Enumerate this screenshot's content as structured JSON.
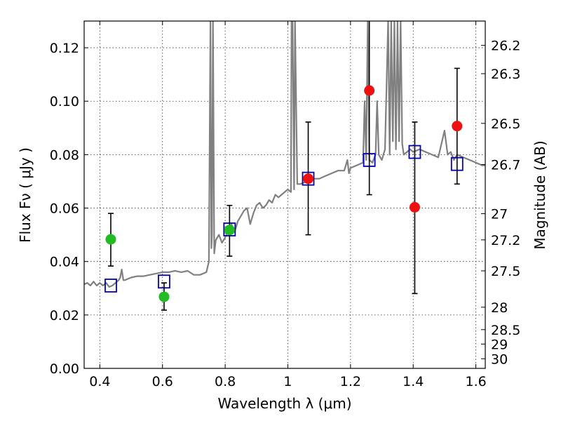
{
  "chart_data": {
    "type": "scatter",
    "xlabel": "Wavelength  λ (μm)",
    "ylabel": "Flux  Fν  ( μJy )",
    "ylabel_right": "Magnitude (AB)",
    "xlim": [
      0.35,
      1.63
    ],
    "ylim": [
      0.0,
      0.13
    ],
    "grid": true,
    "x_ticks": [
      0.4,
      0.6,
      0.8,
      1.0,
      1.2,
      1.4,
      1.6
    ],
    "x_tick_labels": [
      "0.4",
      "0.6",
      "0.8",
      "1",
      "1.2",
      "1.4",
      "1.6"
    ],
    "y_ticks": [
      0.0,
      0.02,
      0.04,
      0.06,
      0.08,
      0.1,
      0.12
    ],
    "y_tick_labels": [
      "0.00",
      "0.02",
      "0.04",
      "0.06",
      "0.08",
      "0.10",
      "0.12"
    ],
    "right_ticks": [
      {
        "label": "26.2",
        "flux": 0.1209
      },
      {
        "label": "26.3",
        "flux": 0.1103
      },
      {
        "label": "26.5",
        "flux": 0.0917
      },
      {
        "label": "26.7",
        "flux": 0.0763
      },
      {
        "label": "27",
        "flux": 0.0579
      },
      {
        "label": "27.2",
        "flux": 0.0481
      },
      {
        "label": "27.5",
        "flux": 0.0365
      },
      {
        "label": "28",
        "flux": 0.0229
      },
      {
        "label": "28.5",
        "flux": 0.0145
      },
      {
        "label": "29",
        "flux": 0.0091
      },
      {
        "label": "30",
        "flux": 0.0036
      }
    ],
    "series": [
      {
        "kind": "spectrum",
        "color": "#808080",
        "x": [
          0.35,
          0.36,
          0.37,
          0.38,
          0.39,
          0.4,
          0.41,
          0.42,
          0.43,
          0.44,
          0.45,
          0.46,
          0.465,
          0.47,
          0.475,
          0.48,
          0.5,
          0.52,
          0.54,
          0.56,
          0.58,
          0.6,
          0.62,
          0.64,
          0.66,
          0.68,
          0.7,
          0.72,
          0.74,
          0.748,
          0.753,
          0.756,
          0.758,
          0.761,
          0.765,
          0.77,
          0.78,
          0.79,
          0.8,
          0.81,
          0.82,
          0.83,
          0.84,
          0.85,
          0.86,
          0.87,
          0.88,
          0.89,
          0.9,
          0.91,
          0.92,
          0.93,
          0.94,
          0.95,
          0.96,
          0.97,
          0.98,
          0.99,
          1.0,
          1.01,
          1.012,
          1.015,
          1.02,
          1.023,
          1.03,
          1.04,
          1.06,
          1.08,
          1.1,
          1.12,
          1.14,
          1.16,
          1.18,
          1.19,
          1.195,
          1.2,
          1.22,
          1.24,
          1.245,
          1.25,
          1.255,
          1.26,
          1.27,
          1.28,
          1.285,
          1.29,
          1.3,
          1.31,
          1.32,
          1.325,
          1.33,
          1.335,
          1.34,
          1.345,
          1.35,
          1.355,
          1.36,
          1.365,
          1.37,
          1.38,
          1.39,
          1.4,
          1.42,
          1.44,
          1.46,
          1.48,
          1.5,
          1.51,
          1.52,
          1.53,
          1.54,
          1.56,
          1.58,
          1.6,
          1.62,
          1.63
        ],
        "y": [
          0.0315,
          0.032,
          0.031,
          0.0325,
          0.031,
          0.032,
          0.031,
          0.032,
          0.0305,
          0.031,
          0.032,
          0.033,
          0.034,
          0.037,
          0.033,
          0.033,
          0.034,
          0.0345,
          0.0345,
          0.035,
          0.0355,
          0.036,
          0.036,
          0.0365,
          0.036,
          0.0365,
          0.035,
          0.035,
          0.036,
          0.04,
          0.13,
          0.045,
          0.05,
          0.13,
          0.043,
          0.048,
          0.05,
          0.047,
          0.049,
          0.052,
          0.054,
          0.051,
          0.055,
          0.057,
          0.059,
          0.06,
          0.054,
          0.058,
          0.061,
          0.062,
          0.06,
          0.061,
          0.063,
          0.062,
          0.065,
          0.064,
          0.065,
          0.066,
          0.067,
          0.066,
          0.13,
          0.13,
          0.067,
          0.13,
          0.069,
          0.069,
          0.07,
          0.071,
          0.071,
          0.072,
          0.073,
          0.074,
          0.074,
          0.078,
          0.073,
          0.075,
          0.076,
          0.077,
          0.1,
          0.078,
          0.13,
          0.078,
          0.077,
          0.08,
          0.1,
          0.08,
          0.078,
          0.082,
          0.13,
          0.08,
          0.13,
          0.085,
          0.13,
          0.082,
          0.13,
          0.085,
          0.13,
          0.084,
          0.08,
          0.081,
          0.082,
          0.081,
          0.082,
          0.081,
          0.08,
          0.079,
          0.089,
          0.08,
          0.081,
          0.078,
          0.08,
          0.079,
          0.078,
          0.077,
          0.076,
          0.076
        ]
      },
      {
        "kind": "model_photometry",
        "marker": "open-square",
        "color": "#0000bf",
        "points": [
          {
            "x": 0.435,
            "y": 0.031
          },
          {
            "x": 0.605,
            "y": 0.0325
          },
          {
            "x": 0.814,
            "y": 0.052
          },
          {
            "x": 1.065,
            "y": 0.071
          },
          {
            "x": 1.26,
            "y": 0.078
          },
          {
            "x": 1.405,
            "y": 0.081
          },
          {
            "x": 1.54,
            "y": 0.0765
          }
        ]
      },
      {
        "kind": "observed",
        "marker": "filled-circle",
        "color": "#22bb22",
        "points": [
          {
            "x": 0.435,
            "y": 0.0483,
            "err_lo": 0.0383,
            "err_hi": 0.058
          },
          {
            "x": 0.605,
            "y": 0.0268,
            "err_lo": 0.0218,
            "err_hi": 0.032
          },
          {
            "x": 0.814,
            "y": 0.0518,
            "err_lo": 0.042,
            "err_hi": 0.061
          }
        ]
      },
      {
        "kind": "observed",
        "marker": "filled-circle",
        "color": "#ee1111",
        "points": [
          {
            "x": 1.065,
            "y": 0.071,
            "err_lo": 0.05,
            "err_hi": 0.0922
          },
          {
            "x": 1.26,
            "y": 0.104,
            "err_lo": 0.065,
            "err_hi": 0.13
          },
          {
            "x": 1.405,
            "y": 0.0603,
            "err_lo": 0.028,
            "err_hi": 0.0922
          },
          {
            "x": 1.54,
            "y": 0.0907,
            "err_lo": 0.069,
            "err_hi": 0.1123
          }
        ]
      }
    ]
  }
}
